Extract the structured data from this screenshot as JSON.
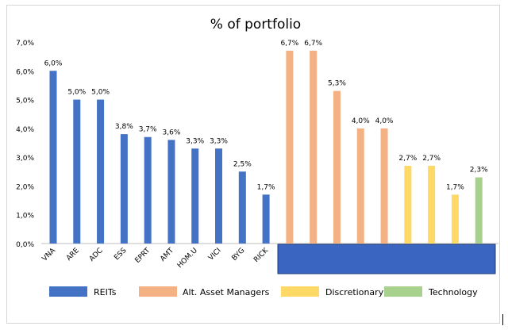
{
  "chart_data": {
    "type": "bar",
    "title": "% of portfolio",
    "xlabel": "",
    "ylabel": "",
    "ylim": [
      0,
      7
    ],
    "y_ticks": [
      "0,0%",
      "1,0%",
      "2,0%",
      "3,0%",
      "4,0%",
      "5,0%",
      "6,0%",
      "7,0%"
    ],
    "grid": false,
    "legend_position": "bottom",
    "categories": [
      "VNA",
      "ARE",
      "ADC",
      "ESS",
      "EPRT",
      "AMT",
      "HOM.U",
      "VICI",
      "BYG",
      "RICK",
      "",
      "",
      "",
      "",
      "",
      "",
      "",
      "",
      ""
    ],
    "series": [
      {
        "name": "REITs",
        "color": "#4472c4",
        "values": [
          6.0,
          5.0,
          5.0,
          3.8,
          3.7,
          3.6,
          3.3,
          3.3,
          2.5,
          1.7,
          null,
          null,
          null,
          null,
          null,
          null,
          null,
          null,
          null
        ]
      },
      {
        "name": "Alt. Asset Managers",
        "color": "#f4b183",
        "values": [
          null,
          null,
          null,
          null,
          null,
          null,
          null,
          null,
          null,
          null,
          6.7,
          6.7,
          5.3,
          4.0,
          4.0,
          null,
          null,
          null,
          null
        ]
      },
      {
        "name": "Discretionary",
        "color": "#ffd966",
        "values": [
          null,
          null,
          null,
          null,
          null,
          null,
          null,
          null,
          null,
          null,
          null,
          null,
          null,
          null,
          null,
          2.7,
          2.7,
          1.7,
          null
        ]
      },
      {
        "name": "Technology",
        "color": "#a9d18e",
        "values": [
          null,
          null,
          null,
          null,
          null,
          null,
          null,
          null,
          null,
          null,
          null,
          null,
          null,
          null,
          null,
          null,
          null,
          null,
          2.3
        ]
      }
    ],
    "data_labels": [
      "6,0%",
      "5,0%",
      "5,0%",
      "3,8%",
      "3,7%",
      "3,6%",
      "3,3%",
      "3,3%",
      "2,5%",
      "1,7%",
      "6,7%",
      "6,7%",
      "5,3%",
      "4,0%",
      "4,0%",
      "2,7%",
      "2,7%",
      "1,7%",
      "2,3%"
    ],
    "overlay_color": "#3a66c1"
  }
}
